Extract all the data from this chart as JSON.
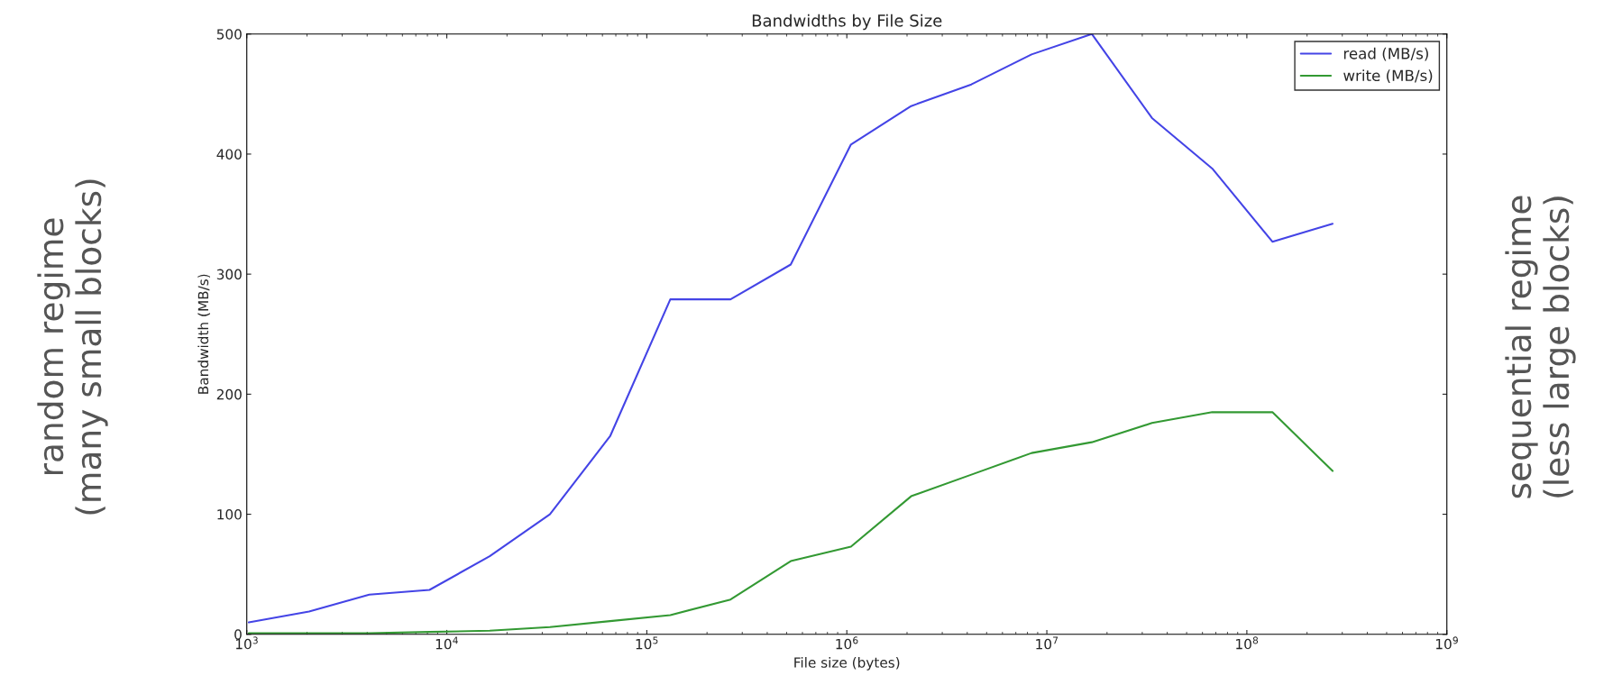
{
  "chart_data": {
    "type": "line",
    "title": "Bandwidths by File Size",
    "xlabel": "File size (bytes)",
    "ylabel": "Bandwidth (MB/s)",
    "x": [
      1024,
      2048,
      4096,
      8192,
      16384,
      32768,
      65536,
      131072,
      262144,
      524288,
      1048576,
      2097152,
      4194304,
      8388608,
      16777216,
      33554432,
      67108864,
      134217728,
      268435456
    ],
    "series": [
      {
        "name": "read (MB/s)",
        "color": "#4444e6",
        "values": [
          10,
          19,
          33,
          37,
          65,
          100,
          165,
          279,
          279,
          308,
          408,
          440,
          458,
          483,
          500,
          430,
          388,
          327,
          342
        ]
      },
      {
        "name": "write (MB/s)",
        "color": "#339933",
        "values": [
          1,
          1,
          1,
          2,
          3,
          6,
          11,
          16,
          29,
          61,
          73,
          115,
          133,
          151,
          160,
          176,
          185,
          185,
          136
        ]
      }
    ],
    "log": "x",
    "xlim": [
      1000,
      1000000000
    ],
    "xticks": [
      {
        "value": 1000,
        "label": "10$^{3}$"
      },
      {
        "value": 10000,
        "label": "10$^{4}$"
      },
      {
        "value": 100000,
        "label": "10$^{5}$"
      },
      {
        "value": 1000000,
        "label": "10$^{6}$"
      },
      {
        "value": 10000000,
        "label": "10$^{7}$"
      },
      {
        "value": 100000000,
        "label": "10$^{8}$"
      },
      {
        "value": 1000000000,
        "label": "10$^{9}$"
      }
    ],
    "ylim": [
      0,
      500
    ],
    "yticks": [
      0,
      100,
      200,
      300,
      400,
      500
    ],
    "grid": false,
    "legend": "top right",
    "annotations": [
      "random regime\n(many small blocks)",
      "sequential regime\n(less large blocks)"
    ]
  }
}
